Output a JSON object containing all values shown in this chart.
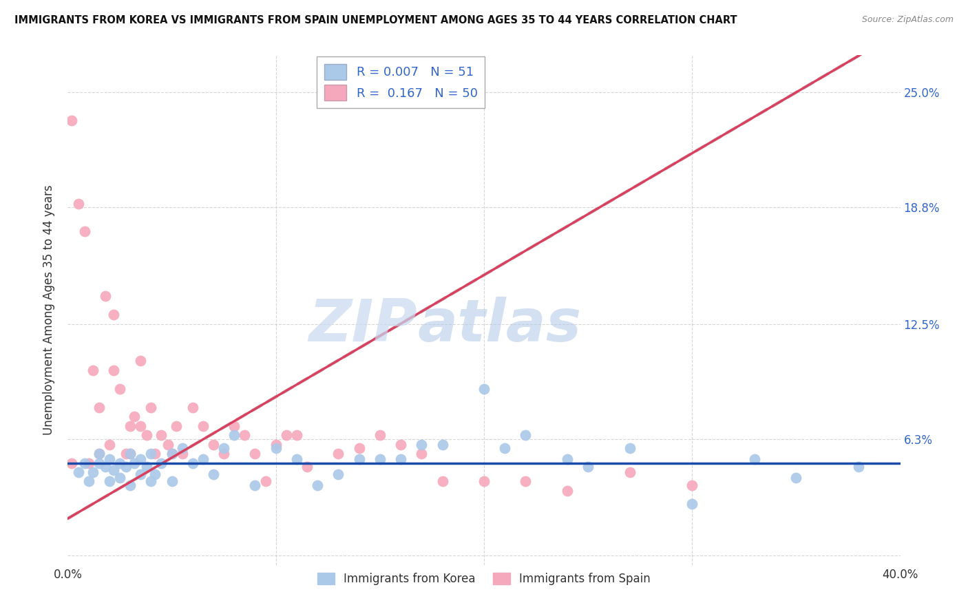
{
  "title": "IMMIGRANTS FROM KOREA VS IMMIGRANTS FROM SPAIN UNEMPLOYMENT AMONG AGES 35 TO 44 YEARS CORRELATION CHART",
  "source": "Source: ZipAtlas.com",
  "ylabel": "Unemployment Among Ages 35 to 44 years",
  "xlim": [
    0.0,
    0.4
  ],
  "ylim": [
    -0.005,
    0.27
  ],
  "xticks": [
    0.0,
    0.1,
    0.2,
    0.3,
    0.4
  ],
  "xtick_labels": [
    "0.0%",
    "",
    "",
    "",
    "40.0%"
  ],
  "yticks": [
    0.0,
    0.063,
    0.125,
    0.188,
    0.25
  ],
  "ytick_labels": [
    "",
    "6.3%",
    "12.5%",
    "18.8%",
    "25.0%"
  ],
  "korea_R": "0.007",
  "korea_N": "51",
  "spain_R": "0.167",
  "spain_N": "50",
  "korea_color": "#aac8e8",
  "spain_color": "#f5a8bc",
  "korea_line_color": "#1a4aaa",
  "spain_line_color": "#d94060",
  "trend_shadow_color": "#d0d0d0",
  "watermark_zip": "ZIP",
  "watermark_atlas": "atlas",
  "legend_korea": "Immigrants from Korea",
  "legend_spain": "Immigrants from Spain",
  "korea_x": [
    0.005,
    0.008,
    0.01,
    0.012,
    0.015,
    0.015,
    0.018,
    0.02,
    0.02,
    0.022,
    0.025,
    0.025,
    0.028,
    0.03,
    0.03,
    0.032,
    0.035,
    0.035,
    0.038,
    0.04,
    0.04,
    0.042,
    0.045,
    0.05,
    0.05,
    0.055,
    0.06,
    0.065,
    0.07,
    0.075,
    0.08,
    0.09,
    0.1,
    0.11,
    0.12,
    0.13,
    0.14,
    0.15,
    0.16,
    0.17,
    0.18,
    0.2,
    0.21,
    0.22,
    0.24,
    0.25,
    0.27,
    0.3,
    0.33,
    0.35,
    0.38
  ],
  "korea_y": [
    0.045,
    0.05,
    0.04,
    0.045,
    0.05,
    0.055,
    0.048,
    0.04,
    0.052,
    0.046,
    0.05,
    0.042,
    0.048,
    0.038,
    0.055,
    0.05,
    0.044,
    0.052,
    0.048,
    0.04,
    0.055,
    0.044,
    0.05,
    0.055,
    0.04,
    0.058,
    0.05,
    0.052,
    0.044,
    0.058,
    0.065,
    0.038,
    0.058,
    0.052,
    0.038,
    0.044,
    0.052,
    0.052,
    0.052,
    0.06,
    0.06,
    0.09,
    0.058,
    0.065,
    0.052,
    0.048,
    0.058,
    0.028,
    0.052,
    0.042,
    0.048
  ],
  "spain_x": [
    0.002,
    0.002,
    0.005,
    0.008,
    0.01,
    0.012,
    0.015,
    0.015,
    0.018,
    0.02,
    0.022,
    0.022,
    0.025,
    0.028,
    0.03,
    0.03,
    0.032,
    0.035,
    0.038,
    0.04,
    0.042,
    0.045,
    0.048,
    0.05,
    0.052,
    0.055,
    0.06,
    0.065,
    0.07,
    0.075,
    0.08,
    0.085,
    0.09,
    0.095,
    0.1,
    0.105,
    0.11,
    0.115,
    0.13,
    0.14,
    0.15,
    0.16,
    0.17,
    0.18,
    0.2,
    0.22,
    0.24,
    0.27,
    0.3,
    0.035
  ],
  "spain_y": [
    0.235,
    0.05,
    0.19,
    0.175,
    0.05,
    0.1,
    0.08,
    0.055,
    0.14,
    0.06,
    0.13,
    0.1,
    0.09,
    0.055,
    0.07,
    0.055,
    0.075,
    0.07,
    0.065,
    0.08,
    0.055,
    0.065,
    0.06,
    0.055,
    0.07,
    0.055,
    0.08,
    0.07,
    0.06,
    0.055,
    0.07,
    0.065,
    0.055,
    0.04,
    0.06,
    0.065,
    0.065,
    0.048,
    0.055,
    0.058,
    0.065,
    0.06,
    0.055,
    0.04,
    0.04,
    0.04,
    0.035,
    0.045,
    0.038,
    0.105
  ],
  "background_color": "#ffffff",
  "grid_color": "#cccccc"
}
